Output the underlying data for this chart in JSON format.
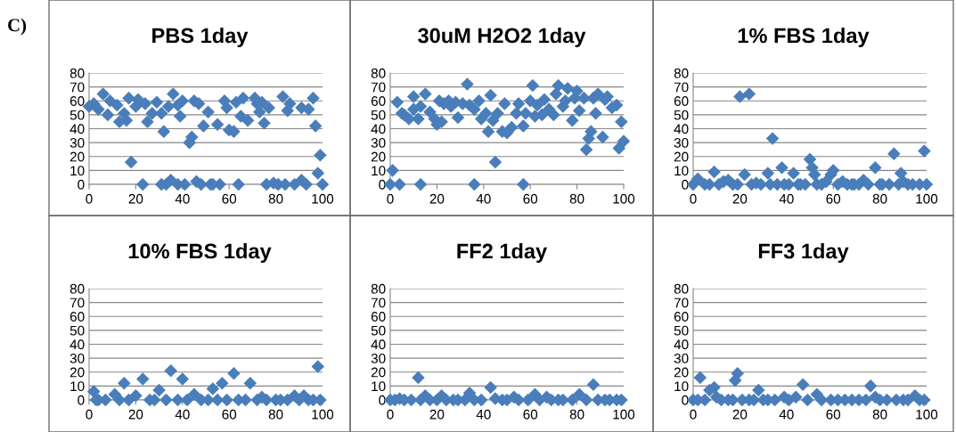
{
  "chart_data": [
    {
      "type": "scatter",
      "title": "PBS 1day",
      "annotations": [
        "C)"
      ],
      "xlim": [
        0,
        100
      ],
      "ylim": [
        0,
        80
      ],
      "xticks": [
        0,
        20,
        40,
        60,
        80,
        100
      ],
      "yticks": [
        0,
        10,
        20,
        30,
        40,
        50,
        60,
        70,
        80
      ],
      "grid": "y",
      "marker": "diamond",
      "series": [
        {
          "color": "#4a7ebb",
          "x": [
            0,
            2,
            4,
            6,
            8,
            9,
            12,
            13,
            15,
            16,
            17,
            18,
            20,
            21,
            23,
            24,
            25,
            27,
            29,
            31,
            31,
            32,
            33,
            34,
            35,
            36,
            38,
            38,
            39,
            40,
            41,
            43,
            44,
            45,
            46,
            47,
            48,
            49,
            51,
            52,
            53,
            55,
            56,
            58,
            59,
            60,
            62,
            63,
            64,
            65,
            66,
            68,
            71,
            72,
            73,
            74,
            75,
            76,
            77,
            79,
            81,
            83,
            84,
            85,
            86,
            88,
            91,
            91,
            93,
            94,
            96,
            97,
            98,
            99,
            100
          ],
          "values": [
            56,
            58,
            54,
            65,
            50,
            60,
            57,
            45,
            51,
            46,
            62,
            16,
            56,
            61,
            0,
            58,
            45,
            51,
            59,
            51,
            0,
            38,
            0,
            56,
            3,
            65,
            57,
            0,
            49,
            60,
            0,
            30,
            34,
            60,
            2,
            58,
            0,
            42,
            52,
            0,
            0,
            43,
            0,
            60,
            55,
            39,
            38,
            59,
            0,
            49,
            62,
            46,
            62,
            58,
            52,
            59,
            44,
            0,
            55,
            1,
            0,
            63,
            0,
            53,
            58,
            0,
            3,
            55,
            0,
            54,
            62,
            42,
            8,
            21,
            0
          ]
        }
      ]
    },
    {
      "type": "scatter",
      "title": "30uM H2O2 1day",
      "xlim": [
        0,
        100
      ],
      "ylim": [
        0,
        80
      ],
      "xticks": [
        0,
        20,
        40,
        60,
        80,
        100
      ],
      "yticks": [
        0,
        10,
        20,
        30,
        40,
        50,
        60,
        70,
        80
      ],
      "grid": "y",
      "marker": "diamond",
      "series": [
        {
          "color": "#4a7ebb",
          "x": [
            0,
            1,
            3,
            4,
            5,
            6,
            8,
            10,
            10,
            12,
            13,
            13,
            15,
            17,
            19,
            20,
            21,
            22,
            23,
            25,
            26,
            28,
            29,
            31,
            33,
            34,
            36,
            36,
            38,
            39,
            41,
            42,
            43,
            44,
            45,
            46,
            48,
            49,
            50,
            52,
            54,
            55,
            57,
            57,
            58,
            60,
            61,
            62,
            63,
            65,
            66,
            68,
            70,
            71,
            72,
            74,
            75,
            76,
            78,
            79,
            80,
            81,
            83,
            84,
            85,
            86,
            87,
            88,
            89,
            91,
            92,
            93,
            95,
            97,
            98,
            99,
            100
          ],
          "values": [
            0,
            10,
            59,
            0,
            51,
            50,
            47,
            63,
            54,
            47,
            0,
            56,
            65,
            52,
            47,
            43,
            60,
            45,
            58,
            60,
            56,
            59,
            48,
            58,
            72,
            57,
            0,
            54,
            60,
            47,
            51,
            38,
            64,
            46,
            16,
            51,
            38,
            58,
            37,
            41,
            51,
            58,
            42,
            0,
            51,
            60,
            71,
            49,
            57,
            50,
            61,
            54,
            50,
            65,
            71,
            56,
            60,
            69,
            46,
            62,
            67,
            53,
            62,
            25,
            33,
            38,
            62,
            51,
            65,
            34,
            61,
            63,
            55,
            57,
            26,
            45,
            31
          ]
        }
      ]
    },
    {
      "type": "scatter",
      "title": "1% FBS 1day",
      "xlim": [
        0,
        100
      ],
      "ylim": [
        0,
        80
      ],
      "xticks": [
        0,
        20,
        40,
        60,
        80,
        100
      ],
      "yticks": [
        0,
        10,
        20,
        30,
        40,
        50,
        60,
        70,
        80
      ],
      "grid": "y",
      "marker": "diamond",
      "series": [
        {
          "color": "#4a7ebb",
          "x": [
            0,
            2,
            5,
            7,
            9,
            11,
            13,
            15,
            17,
            19,
            20,
            22,
            24,
            25,
            27,
            29,
            32,
            33,
            34,
            36,
            38,
            39,
            41,
            43,
            45,
            46,
            48,
            50,
            51,
            52,
            53,
            55,
            57,
            59,
            60,
            62,
            64,
            66,
            68,
            69,
            71,
            73,
            75,
            78,
            80,
            81,
            84,
            86,
            88,
            89,
            90,
            92,
            94,
            97,
            98,
            99,
            100
          ],
          "values": [
            0,
            4,
            0,
            0,
            9,
            0,
            2,
            3,
            0,
            0,
            63,
            7,
            65,
            0,
            1,
            0,
            8,
            0,
            33,
            0,
            12,
            0,
            0,
            8,
            0,
            0,
            0,
            18,
            12,
            7,
            0,
            0,
            2,
            7,
            10,
            0,
            2,
            0,
            0,
            0,
            0,
            3,
            0,
            12,
            0,
            0,
            0,
            22,
            0,
            8,
            2,
            0,
            0,
            0,
            null,
            24,
            0
          ]
        }
      ]
    },
    {
      "type": "scatter",
      "title": "10% FBS 1day",
      "xlim": [
        0,
        100
      ],
      "ylim": [
        0,
        80
      ],
      "xticks": [
        0,
        20,
        40,
        60,
        80,
        100
      ],
      "yticks": [
        0,
        10,
        20,
        30,
        40,
        50,
        60,
        70,
        80
      ],
      "grid": "y",
      "marker": "diamond",
      "series": [
        {
          "color": "#4a7ebb",
          "x": [
            2,
            3,
            4,
            7,
            11,
            13,
            15,
            17,
            20,
            23,
            26,
            28,
            30,
            33,
            35,
            38,
            40,
            42,
            45,
            48,
            51,
            53,
            55,
            57,
            59,
            62,
            64,
            67,
            69,
            72,
            74,
            76,
            80,
            82,
            85,
            88,
            90,
            92,
            94,
            96,
            98,
            99
          ],
          "values": [
            6,
            0,
            0,
            0,
            4,
            0,
            12,
            0,
            3,
            15,
            0,
            0,
            7,
            0,
            21,
            0,
            15,
            0,
            4,
            0,
            0,
            8,
            0,
            12,
            0,
            19,
            0,
            0,
            12,
            0,
            2,
            0,
            0,
            0,
            0,
            3,
            0,
            3,
            0,
            0,
            24,
            0
          ]
        }
      ]
    },
    {
      "type": "scatter",
      "title": "FF2 1day",
      "xlim": [
        0,
        100
      ],
      "ylim": [
        0,
        80
      ],
      "xticks": [
        0,
        20,
        40,
        60,
        80,
        100
      ],
      "yticks": [
        0,
        10,
        20,
        30,
        40,
        50,
        60,
        70,
        80
      ],
      "grid": "y",
      "marker": "diamond",
      "series": [
        {
          "color": "#4a7ebb",
          "x": [
            0,
            2,
            4,
            6,
            9,
            12,
            13,
            15,
            17,
            20,
            22,
            24,
            27,
            29,
            32,
            34,
            36,
            39,
            43,
            45,
            48,
            50,
            53,
            55,
            59,
            62,
            64,
            67,
            69,
            72,
            74,
            78,
            81,
            84,
            87,
            89,
            92,
            94,
            97,
            99
          ],
          "values": [
            0,
            0,
            1,
            0,
            0,
            16,
            0,
            3,
            0,
            0,
            3,
            0,
            0,
            0,
            0,
            5,
            0,
            0,
            9,
            1,
            0,
            0,
            2,
            0,
            0,
            4,
            0,
            2,
            0,
            0,
            0,
            0,
            4,
            0,
            11,
            0,
            0,
            0,
            0,
            0
          ]
        }
      ]
    },
    {
      "type": "scatter",
      "title": "FF3 1day",
      "xlim": [
        0,
        100
      ],
      "ylim": [
        0,
        80
      ],
      "xticks": [
        0,
        20,
        40,
        60,
        80,
        100
      ],
      "yticks": [
        0,
        10,
        20,
        30,
        40,
        50,
        60,
        70,
        80
      ],
      "grid": "y",
      "marker": "diamond",
      "series": [
        {
          "color": "#4a7ebb",
          "x": [
            0,
            2,
            3,
            5,
            7,
            9,
            10,
            12,
            15,
            17,
            18,
            19,
            21,
            24,
            26,
            28,
            30,
            32,
            35,
            39,
            41,
            44,
            47,
            49,
            53,
            55,
            59,
            62,
            65,
            68,
            71,
            74,
            76,
            78,
            80,
            83,
            87,
            90,
            92,
            95,
            97,
            99
          ],
          "values": [
            0,
            0,
            16,
            0,
            7,
            9,
            2,
            0,
            0,
            0,
            14,
            19,
            0,
            0,
            0,
            7,
            0,
            0,
            0,
            2,
            0,
            2,
            11,
            0,
            4,
            0,
            0,
            0,
            0,
            0,
            0,
            0,
            10,
            2,
            0,
            0,
            0,
            0,
            0,
            3,
            0,
            0
          ]
        }
      ]
    }
  ]
}
